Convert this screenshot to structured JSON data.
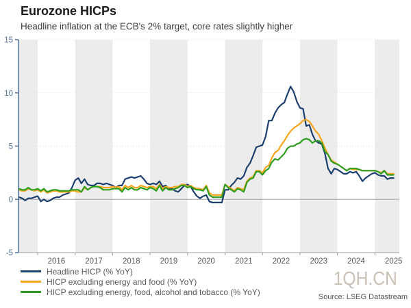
{
  "chart_data": {
    "type": "line",
    "title": "Eurozone HICPs",
    "subtitle": "Headline inflation at the ECB's 2% target, core rates slightly higher",
    "watermark": "1QH.CN",
    "source": "Source: LSEG Datastream",
    "frequency": "monthly",
    "x_start": "2015-07",
    "x_end": "2025-07",
    "ylim": [
      -5,
      15
    ],
    "y_ticks": [
      -5,
      0,
      5,
      10,
      15
    ],
    "x_ticks": [
      2016,
      2017,
      2018,
      2019,
      2020,
      2021,
      2022,
      2023,
      2024,
      2025
    ],
    "shaded_years": [
      2015,
      2017,
      2019,
      2021,
      2023,
      2025
    ],
    "grid": "dotted horizontal at 5,10,15; solid gray zero line",
    "legend_position": "bottom-left",
    "colors": {
      "axis_y": "#4f7299",
      "axis_x": "#9b9b9b",
      "tick_label_y": "#4f7299",
      "tick_label_x": "#595959",
      "band": "#ececec",
      "zero_line": "#b3b3b3",
      "gridline": "#dcdcdc"
    },
    "series": [
      {
        "name": "Headline HICP (% YoY)",
        "color": "#1c3f6e",
        "values": [
          0.2,
          0.1,
          -0.1,
          0.1,
          0.1,
          0.2,
          0.3,
          -0.2,
          0.0,
          -0.2,
          -0.1,
          0.1,
          0.2,
          0.2,
          0.4,
          0.5,
          0.6,
          1.1,
          1.8,
          2.0,
          1.5,
          1.9,
          1.4,
          1.3,
          1.3,
          1.5,
          1.5,
          1.4,
          1.5,
          1.4,
          1.3,
          1.1,
          1.3,
          1.3,
          1.9,
          2.0,
          2.1,
          2.0,
          2.1,
          2.2,
          1.9,
          1.5,
          1.4,
          1.5,
          1.4,
          1.7,
          1.2,
          1.3,
          1.0,
          1.0,
          0.8,
          0.7,
          1.0,
          1.3,
          1.4,
          1.2,
          0.7,
          0.3,
          0.1,
          0.3,
          0.4,
          -0.2,
          -0.3,
          -0.3,
          -0.3,
          -0.3,
          0.9,
          0.9,
          1.3,
          1.6,
          2.0,
          1.9,
          2.2,
          3.0,
          3.4,
          4.1,
          4.9,
          5.0,
          5.1,
          5.9,
          7.4,
          7.4,
          8.1,
          8.6,
          8.9,
          9.1,
          9.9,
          10.6,
          10.1,
          9.2,
          8.6,
          8.5,
          6.9,
          7.0,
          6.1,
          5.5,
          5.3,
          5.2,
          4.3,
          2.9,
          2.4,
          2.9,
          2.8,
          2.6,
          2.4,
          2.4,
          2.6,
          2.5,
          2.6,
          2.2,
          1.7,
          2.0,
          2.2,
          2.4,
          2.5,
          2.3,
          2.2,
          2.2,
          1.9,
          2.0,
          2.0
        ]
      },
      {
        "name": "HICP excluding energy and food (% YoY)",
        "color": "#f9a51b",
        "values": [
          0.9,
          0.8,
          0.8,
          1.0,
          0.9,
          0.8,
          0.9,
          0.7,
          0.9,
          0.6,
          0.7,
          0.8,
          0.8,
          0.7,
          0.7,
          0.7,
          0.7,
          0.8,
          0.8,
          0.7,
          0.7,
          1.1,
          0.9,
          1.1,
          1.2,
          1.2,
          1.2,
          1.1,
          1.1,
          1.1,
          1.2,
          1.1,
          1.2,
          0.9,
          1.3,
          1.1,
          1.3,
          1.1,
          1.1,
          1.3,
          1.2,
          1.1,
          1.2,
          1.2,
          1.0,
          1.4,
          1.0,
          1.2,
          1.1,
          1.1,
          1.2,
          1.2,
          1.4,
          1.4,
          1.2,
          1.3,
          1.1,
          1.0,
          1.0,
          0.9,
          1.3,
          0.6,
          0.4,
          0.4,
          0.4,
          0.4,
          1.4,
          1.2,
          1.0,
          0.8,
          1.1,
          1.0,
          0.9,
          1.7,
          2.0,
          2.1,
          2.7,
          2.7,
          2.5,
          3.0,
          3.2,
          3.9,
          4.4,
          4.6,
          5.1,
          5.5,
          6.0,
          6.4,
          6.7,
          6.9,
          7.1,
          7.4,
          7.5,
          7.3,
          6.9,
          6.4,
          6.1,
          5.5,
          4.8,
          4.2,
          3.7,
          3.5,
          3.3,
          3.1,
          2.9,
          2.7,
          2.9,
          2.8,
          2.8,
          2.8,
          2.7,
          2.7,
          2.7,
          2.7,
          2.7,
          2.6,
          2.5,
          2.7,
          2.4,
          2.4,
          2.4
        ]
      },
      {
        "name": "HICP excluding energy, food, alcohol and tobacco (% YoY)",
        "color": "#2d9e1f",
        "values": [
          1.0,
          0.9,
          0.9,
          1.1,
          0.9,
          0.9,
          1.0,
          0.8,
          1.0,
          0.7,
          0.8,
          0.9,
          0.9,
          0.8,
          0.8,
          0.8,
          0.8,
          0.9,
          0.9,
          0.9,
          0.7,
          1.2,
          0.9,
          1.1,
          1.2,
          1.2,
          1.1,
          0.9,
          0.9,
          0.9,
          1.0,
          1.0,
          1.0,
          0.7,
          1.1,
          0.9,
          1.1,
          0.9,
          0.9,
          1.1,
          1.0,
          0.9,
          1.1,
          1.0,
          0.8,
          1.3,
          0.8,
          1.1,
          0.9,
          0.9,
          1.0,
          1.1,
          1.3,
          1.3,
          1.1,
          1.2,
          1.0,
          0.9,
          0.9,
          0.8,
          1.2,
          0.4,
          0.2,
          0.2,
          0.2,
          0.2,
          1.4,
          1.1,
          0.9,
          0.7,
          1.0,
          0.9,
          0.7,
          1.6,
          1.9,
          2.0,
          2.6,
          2.6,
          2.3,
          2.7,
          2.9,
          3.5,
          3.8,
          3.7,
          4.0,
          4.3,
          4.8,
          5.0,
          5.0,
          5.2,
          5.3,
          5.6,
          5.7,
          5.6,
          5.3,
          5.5,
          5.5,
          5.3,
          4.5,
          4.2,
          3.6,
          3.4,
          3.3,
          3.1,
          2.9,
          2.7,
          2.9,
          2.9,
          2.9,
          2.8,
          2.7,
          2.7,
          2.7,
          2.7,
          2.7,
          2.6,
          2.4,
          2.7,
          2.3,
          2.3,
          2.3
        ]
      }
    ]
  }
}
